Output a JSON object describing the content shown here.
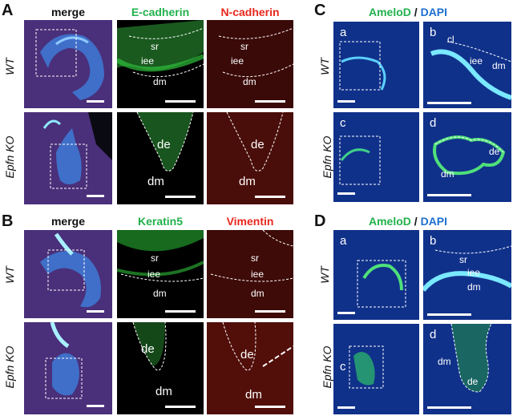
{
  "panels": {
    "A": {
      "letter": "A",
      "headers": [
        "merge",
        "E-cadherin",
        "N-cadherin"
      ],
      "rows": [
        "WT",
        "Epfn KO"
      ],
      "tile_labels": {
        "wt_green": [
          "sr",
          "iee",
          "dm"
        ],
        "wt_red": [
          "sr",
          "iee",
          "dm"
        ],
        "ko_green": [
          "de",
          "dm"
        ],
        "ko_red": [
          "de",
          "dm"
        ]
      }
    },
    "B": {
      "letter": "B",
      "headers": [
        "merge",
        "Keratin5",
        "Vimentin"
      ],
      "rows": [
        "WT",
        "Epfn KO"
      ],
      "tile_labels": {
        "wt_green": [
          "sr",
          "iee",
          "dm"
        ],
        "wt_red": [
          "sr",
          "iee",
          "dm"
        ],
        "ko_green": [
          "de",
          "dm"
        ],
        "ko_red": [
          "de",
          "dm"
        ]
      }
    },
    "C": {
      "letter": "C",
      "header_green": "AmeloD",
      "header_sep": " / ",
      "header_blue": "DAPI",
      "rows": [
        "WT",
        "Epfn KO"
      ],
      "tile_letters": [
        "a",
        "b",
        "c",
        "d"
      ],
      "tile_labels": {
        "b": [
          "cl",
          "iee",
          "dm"
        ],
        "d": [
          "de",
          "dm"
        ]
      }
    },
    "D": {
      "letter": "D",
      "header_green": "AmeloD",
      "header_sep": " / ",
      "header_blue": "DAPI",
      "rows": [
        "WT",
        "Epfn KO"
      ],
      "tile_letters": [
        "a",
        "b",
        "c",
        "d"
      ],
      "tile_labels": {
        "b": [
          "sr",
          "iee",
          "dm"
        ],
        "d": [
          "dm",
          "de"
        ]
      }
    }
  },
  "colors": {
    "green": "#22b14c",
    "red": "#e8281e",
    "blue": "#1e6fd0",
    "tile_bg": "#000000"
  }
}
